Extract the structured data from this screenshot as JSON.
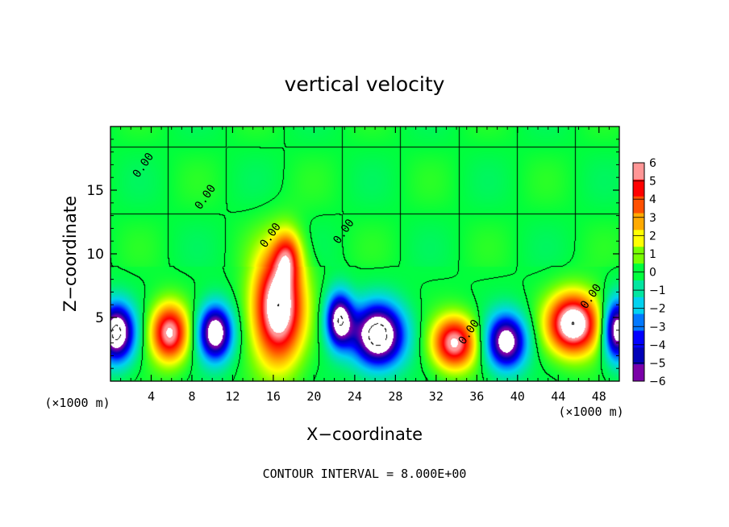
{
  "chart_data": {
    "type": "heatmap",
    "title": "vertical velocity",
    "xlabel": "X−coordinate",
    "ylabel": "Z−coordinate",
    "x_unit_left": "(×1000 m)",
    "x_unit_right": "(×1000 m)",
    "xlim": [
      0,
      50
    ],
    "ylim": [
      0,
      20
    ],
    "xticks": [
      {
        "v": 4,
        "label": "4"
      },
      {
        "v": 8,
        "label": "8"
      },
      {
        "v": 12,
        "label": "12"
      },
      {
        "v": 16,
        "label": "16"
      },
      {
        "v": 20,
        "label": "20"
      },
      {
        "v": 24,
        "label": "24"
      },
      {
        "v": 28,
        "label": "28"
      },
      {
        "v": 32,
        "label": "32"
      },
      {
        "v": 36,
        "label": "36"
      },
      {
        "v": 40,
        "label": "40"
      },
      {
        "v": 44,
        "label": "44"
      },
      {
        "v": 48,
        "label": "48"
      }
    ],
    "yticks": [
      {
        "v": 5,
        "label": "5"
      },
      {
        "v": 10,
        "label": "10"
      },
      {
        "v": 15,
        "label": "15"
      }
    ],
    "colorbar": {
      "min": -6,
      "max": 6,
      "ticks": [
        {
          "v": 6,
          "label": "6"
        },
        {
          "v": 5,
          "label": "5"
        },
        {
          "v": 4,
          "label": "4"
        },
        {
          "v": 3,
          "label": "3"
        },
        {
          "v": 2,
          "label": "2"
        },
        {
          "v": 1,
          "label": "1"
        },
        {
          "v": 0,
          "label": "0"
        },
        {
          "v": -1,
          "label": "−1"
        },
        {
          "v": -2,
          "label": "−2"
        },
        {
          "v": -3,
          "label": "−3"
        },
        {
          "v": -4,
          "label": "−4"
        },
        {
          "v": -5,
          "label": "−5"
        },
        {
          "v": -6,
          "label": "−6"
        }
      ],
      "stops": [
        {
          "v": -6,
          "color": "#7a00a8"
        },
        {
          "v": -5,
          "color": "#0000b8"
        },
        {
          "v": -4,
          "color": "#0000ff"
        },
        {
          "v": -3,
          "color": "#0078ff"
        },
        {
          "v": -2,
          "color": "#00d2f0"
        },
        {
          "v": -1,
          "color": "#00e6a0"
        },
        {
          "v": 0,
          "color": "#00ff3c"
        },
        {
          "v": 1,
          "color": "#78ff00"
        },
        {
          "v": 2,
          "color": "#ffff00"
        },
        {
          "v": 3,
          "color": "#ffaa00"
        },
        {
          "v": 4,
          "color": "#ff5000"
        },
        {
          "v": 5,
          "color": "#ff0000"
        },
        {
          "v": 6,
          "color": "#ff9696"
        }
      ]
    },
    "contour_labels": [
      {
        "x": 3.5,
        "z": 16.8,
        "text": "0.00"
      },
      {
        "x": 9.6,
        "z": 14.3,
        "text": "0.00"
      },
      {
        "x": 16.0,
        "z": 11.3,
        "text": "0.00"
      },
      {
        "x": 23.2,
        "z": 11.6,
        "text": "0.00"
      },
      {
        "x": 35.5,
        "z": 3.7,
        "text": "0.00"
      },
      {
        "x": 47.5,
        "z": 6.5,
        "text": "0.00"
      }
    ],
    "updrafts": [
      {
        "x": 5.8,
        "z": 3.8,
        "sx": 1.8,
        "sz": 2.2,
        "amp": 6.5
      },
      {
        "x": 16.5,
        "z": 5.8,
        "sx": 2.4,
        "sz": 4.2,
        "amp": 8.0
      },
      {
        "x": 17.4,
        "z": 9.8,
        "sx": 1.3,
        "sz": 2.0,
        "amp": 3.5
      },
      {
        "x": 33.8,
        "z": 3.0,
        "sx": 2.1,
        "sz": 2.0,
        "amp": 6.5
      },
      {
        "x": 45.5,
        "z": 4.5,
        "sx": 2.5,
        "sz": 2.3,
        "amp": 8.0
      }
    ],
    "downdrafts": [
      {
        "x": 0.6,
        "z": 3.8,
        "sx": 1.7,
        "sz": 2.2,
        "amp": -8.5
      },
      {
        "x": 10.3,
        "z": 3.8,
        "sx": 1.6,
        "sz": 2.1,
        "amp": -8.0
      },
      {
        "x": 22.5,
        "z": 4.8,
        "sx": 1.3,
        "sz": 2.1,
        "amp": -7.5
      },
      {
        "x": 26.3,
        "z": 3.6,
        "sx": 2.5,
        "sz": 2.4,
        "amp": -9.0
      },
      {
        "x": 38.9,
        "z": 3.1,
        "sx": 1.9,
        "sz": 2.1,
        "amp": -7.5
      },
      {
        "x": 49.8,
        "z": 4.0,
        "sx": 1.3,
        "sz": 2.3,
        "amp": -7.5
      }
    ],
    "footer": "CONTOUR INTERVAL = 8.000E+00"
  }
}
